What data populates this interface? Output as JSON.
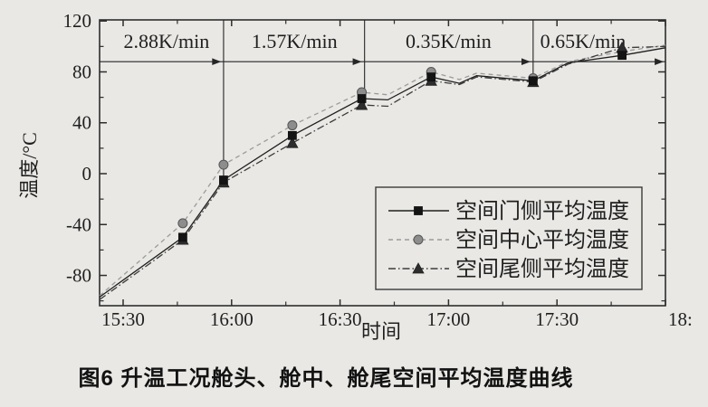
{
  "figure": {
    "caption": "图6  升温工况舱头、舱中、舱尾空间平均温度曲线"
  },
  "colors": {
    "paper": "#e9e8e5",
    "axis": "#2e2e2e",
    "text": "#1f1f1f"
  },
  "chart_data": {
    "type": "line",
    "title": "",
    "xlabel": "时间",
    "ylabel": "温度/°C",
    "x_axis": {
      "domain_hours": [
        15.392,
        18.0
      ],
      "major_ticks": [
        {
          "t": 15.5,
          "label": "15:30"
        },
        {
          "t": 16.0,
          "label": "16:00"
        },
        {
          "t": 16.5,
          "label": "16:30"
        },
        {
          "t": 17.0,
          "label": "17:00"
        },
        {
          "t": 17.5,
          "label": "17:30"
        },
        {
          "t": 18.0,
          "label": "18:",
          "align": "left"
        }
      ],
      "minor_ticks": [
        15.75,
        16.25,
        16.75,
        17.25,
        17.75
      ]
    },
    "y_axis": {
      "domain": [
        -104,
        120
      ],
      "major_ticks": [
        {
          "v": 120,
          "label": "120"
        },
        {
          "v": 80,
          "label": "80"
        },
        {
          "v": 40,
          "label": "40"
        },
        {
          "v": 0,
          "label": "0"
        },
        {
          "v": -40,
          "label": "-40"
        },
        {
          "v": -80,
          "label": "-80"
        }
      ],
      "minor_ticks": [
        100,
        60,
        20,
        -20,
        -60,
        -100
      ]
    },
    "annotations": {
      "heating_rates": [
        {
          "label": "2.88K/min",
          "center_t": 15.7
        },
        {
          "label": "1.57K/min",
          "center_t": 16.29
        },
        {
          "label": "0.35K/min",
          "center_t": 17.0
        },
        {
          "label": "0.65K/min",
          "center_t": 17.62
        }
      ],
      "hline_temp": 88,
      "arrow_times": [
        15.952,
        16.6,
        17.378,
        17.992
      ],
      "vlines": [
        {
          "t": 15.963,
          "to_temp": -10
        },
        {
          "t": 16.613,
          "to_temp": 52
        },
        {
          "t": 17.39,
          "to_temp": 70
        }
      ]
    },
    "x_hours": [
      15.392,
      15.775,
      15.963,
      16.28,
      16.6,
      16.72,
      16.92,
      17.05,
      17.13,
      17.39,
      17.55,
      17.8,
      18.0
    ],
    "marker_indices": [
      1,
      2,
      3,
      4,
      6,
      9,
      11
    ],
    "series": [
      {
        "key": "center",
        "name": "空间中心平均温度",
        "marker": "circle",
        "line": "dashed",
        "color": "#9b9b9b",
        "marker_color": "#8d8d8d",
        "values": [
          -96,
          -39,
          7,
          38,
          64,
          62,
          80,
          74,
          79,
          75,
          88,
          96,
          101
        ]
      },
      {
        "key": "tail-side",
        "name": "空间尾侧平均温度",
        "marker": "triangle",
        "line": "dashdot",
        "color": "#3c3c3c",
        "marker_color": "#2d2d2d",
        "values": [
          -99,
          -52,
          -7,
          24,
          54,
          53,
          73,
          70,
          76,
          72,
          86,
          99,
          100
        ]
      },
      {
        "key": "door-side",
        "name": "空间门侧平均温度",
        "marker": "square",
        "line": "solid",
        "color": "#1f1f1f",
        "marker_color": "#141414",
        "values": [
          -97,
          -50,
          -5,
          30,
          59,
          58,
          76,
          71,
          77,
          73,
          87,
          93,
          99
        ]
      }
    ],
    "legend": {
      "order": [
        "door-side",
        "center",
        "tail-side"
      ],
      "items": [
        {
          "key": "door-side",
          "label": "空间门侧平均温度"
        },
        {
          "key": "center",
          "label": "空间中心平均温度"
        },
        {
          "key": "tail-side",
          "label": "空间尾侧平均温度"
        }
      ]
    }
  }
}
